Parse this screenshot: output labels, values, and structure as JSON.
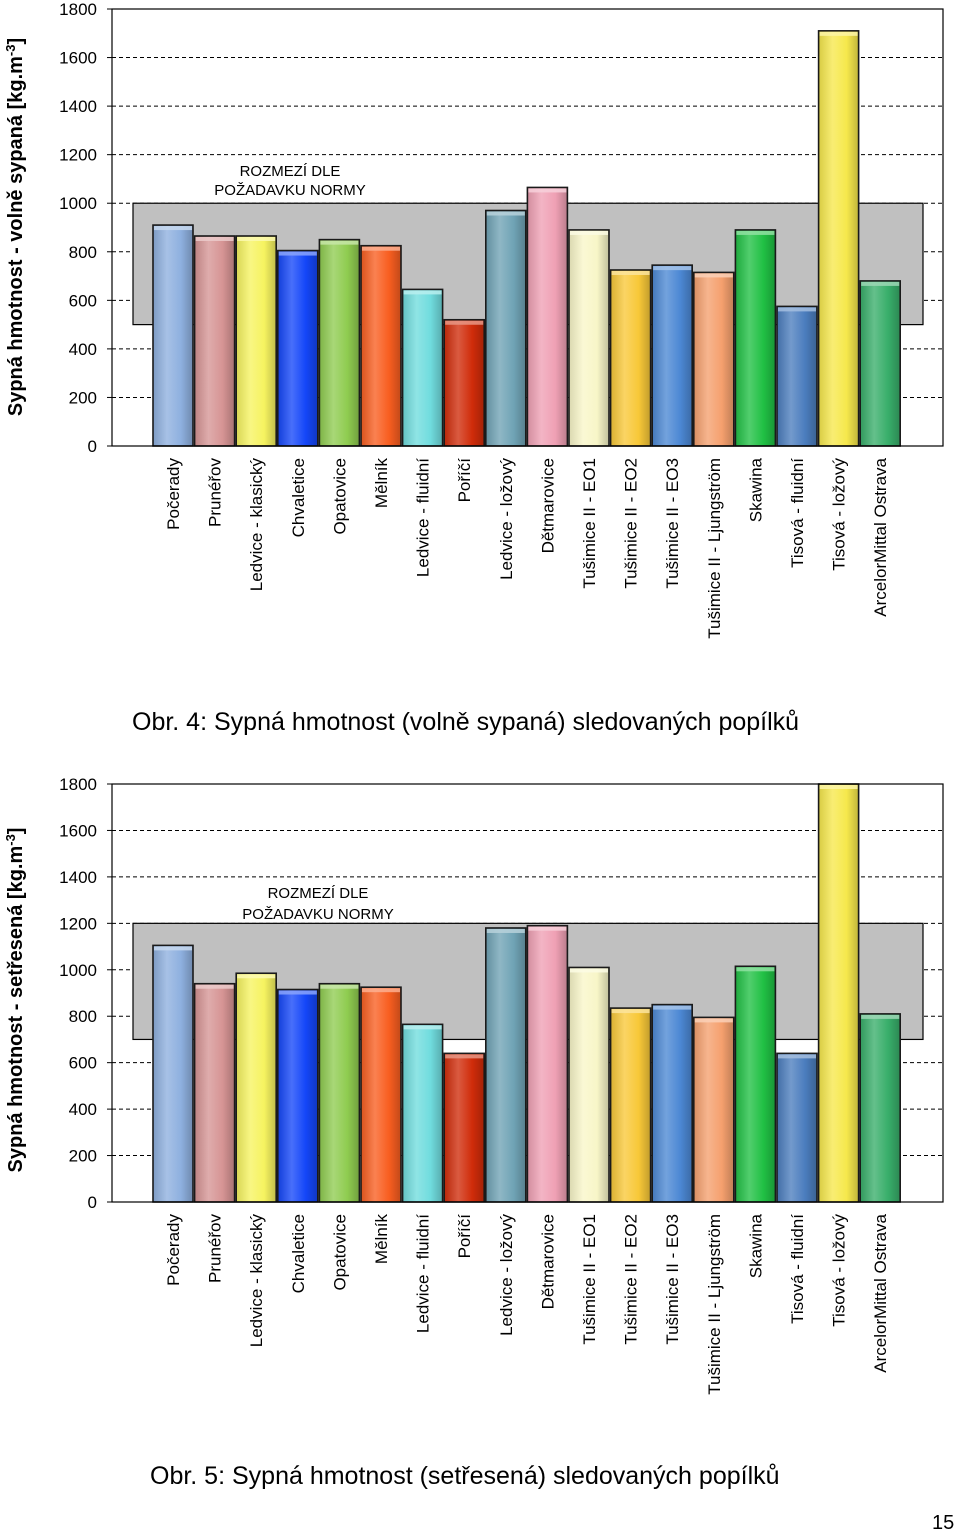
{
  "chart_data": [
    {
      "type": "bar",
      "ylabel": "Sypná hmotnost - volně sypaná [kg.m-3]",
      "ylim": [
        0,
        1800
      ],
      "yticks": [
        0,
        200,
        400,
        600,
        800,
        1000,
        1200,
        1400,
        1600,
        1800
      ],
      "grid": true,
      "range_band": {
        "label_line1": "ROZMEZÍ DLE",
        "label_line2": "POŽADAVKU NORMY",
        "min": 500,
        "max": 1000
      },
      "categories": [
        "Počerady",
        "Prunéřov",
        "Ledvice - klasický",
        "Chvaletice",
        "Opatovice",
        "Mělník",
        "Ledvice - fluidní",
        "Poříčí",
        "Ledvice - ložový",
        "Dětmarovice",
        "Tušimice II  - EO1",
        "Tušimice II - EO2",
        "Tušimice II - EO3",
        "Tušimice II - Ljungström",
        "Skawina",
        "Tisová - fluidní",
        "Tisová - ložový",
        "ArcelorMittal Ostrava"
      ],
      "values": [
        910,
        865,
        865,
        805,
        850,
        825,
        645,
        520,
        970,
        1065,
        890,
        725,
        745,
        715,
        890,
        575,
        1710,
        680
      ]
    },
    {
      "type": "bar",
      "ylabel": "Sypná hmotnost - setřesená [kg.m-3]",
      "ylim": [
        0,
        1800
      ],
      "yticks": [
        0,
        200,
        400,
        600,
        800,
        1000,
        1200,
        1400,
        1600,
        1800
      ],
      "grid": true,
      "range_band": {
        "label_line1": "ROZMEZÍ DLE",
        "label_line2": "POŽADAVKU NORMY",
        "min": 700,
        "max": 1200
      },
      "categories": [
        "Počerady",
        "Prunéřov",
        "Ledvice - klasický",
        "Chvaletice",
        "Opatovice",
        "Mělník",
        "Ledvice - fluidní",
        "Poříčí",
        "Ledvice - ložový",
        "Dětmarovice",
        "Tušimice II  - EO1",
        "Tušimice II - EO2",
        "Tušimice II - EO3",
        "Tušimice II - Ljungström",
        "Skawina",
        "Tisová - fluidní",
        "Tisová - ložový",
        "ArcelorMittal Ostrava"
      ],
      "values": [
        1105,
        940,
        985,
        915,
        940,
        925,
        765,
        640,
        1180,
        1190,
        1010,
        835,
        850,
        795,
        1015,
        640,
        1800,
        810
      ]
    }
  ],
  "colors": {
    "bars": [
      "#8EB0DF",
      "#D69494",
      "#F6F360",
      "#1446F8",
      "#8FCC50",
      "#F85E20",
      "#70DCDE",
      "#D02C0A",
      "#6FA3B5",
      "#EFA0B4",
      "#F8F6C8",
      "#F8C838",
      "#4C88D4",
      "#F5A06E",
      "#20C044",
      "#4B7DBE",
      "#F6E84C",
      "#38AE6A"
    ],
    "band": "#C0C0C0",
    "grid": "#000000"
  },
  "captions": {
    "fig4_prefix": "Obr. 4:",
    "fig4_text": " Sypná hmotnost (volně sypaná) sledovaných popílků",
    "fig5_prefix": "Obr. 5:",
    "fig5_text": " Sypná hmotnost (setřesená) sledovaných popílků"
  },
  "page_number": "15"
}
